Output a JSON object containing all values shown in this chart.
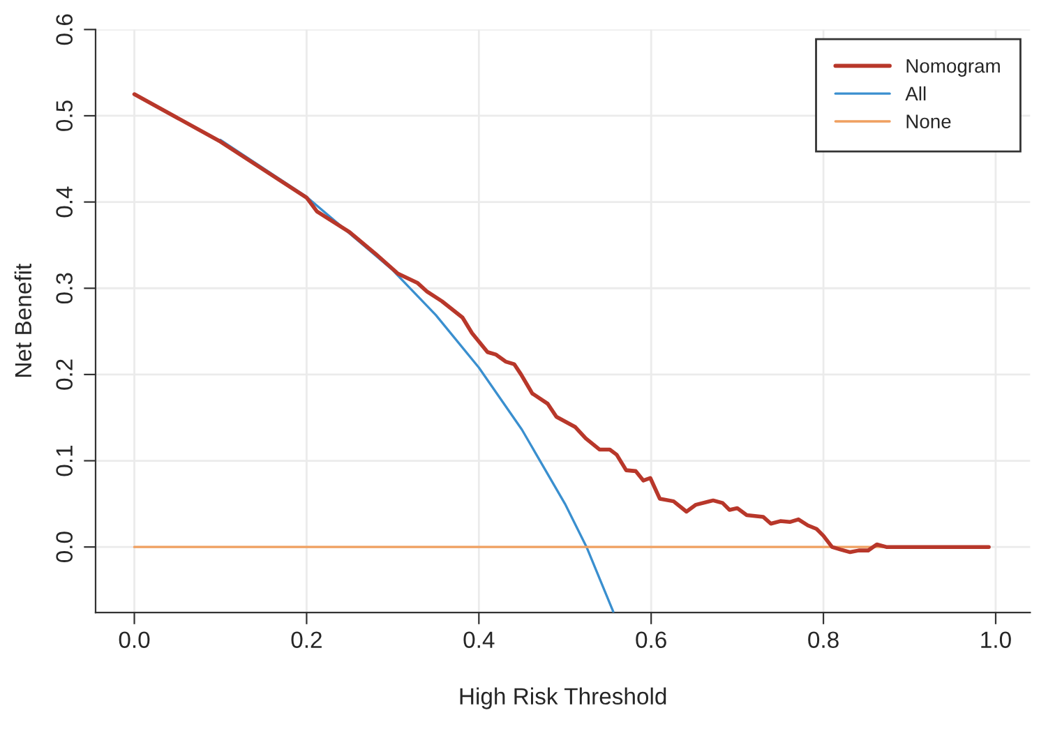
{
  "chart_data": {
    "type": "line",
    "xlabel": "High Risk Threshold",
    "ylabel": "Net Benefit",
    "xlim": [
      -0.045,
      1.04
    ],
    "ylim": [
      -0.076,
      0.6
    ],
    "xticks": [
      {
        "value": 0,
        "label": "0.0"
      },
      0.2,
      0.4,
      0.6,
      0.8,
      {
        "value": 1,
        "label": "1.0"
      }
    ],
    "yticks": [
      {
        "value": 0,
        "label": "0.0"
      },
      0.1,
      0.2,
      0.3,
      0.4,
      0.5,
      0.6
    ],
    "grid": true,
    "legend": "top right",
    "line_style": "solid",
    "marker": "none",
    "series": [
      {
        "name": "Nomogram",
        "color": "#b8372a",
        "x": [
          0,
          0.1,
          0.2,
          0.212,
          0.25,
          0.28,
          0.306,
          0.329,
          0.34,
          0.357,
          0.381,
          0.392,
          0.41,
          0.42,
          0.431,
          0.441,
          0.449,
          0.462,
          0.48,
          0.49,
          0.512,
          0.524,
          0.54,
          0.552,
          0.56,
          0.571,
          0.582,
          0.591,
          0.599,
          0.61,
          0.626,
          0.641,
          0.652,
          0.672,
          0.683,
          0.691,
          0.7,
          0.711,
          0.73,
          0.739,
          0.75,
          0.761,
          0.771,
          0.782,
          0.792,
          0.8,
          0.81,
          0.82,
          0.831,
          0.841,
          0.852,
          0.862,
          0.873,
          0.992
        ],
        "values": [
          0.525,
          0.47,
          0.405,
          0.389,
          0.365,
          0.34,
          0.317,
          0.306,
          0.296,
          0.285,
          0.266,
          0.248,
          0.226,
          0.223,
          0.215,
          0.212,
          0.2,
          0.178,
          0.166,
          0.151,
          0.139,
          0.126,
          0.113,
          0.113,
          0.107,
          0.089,
          0.088,
          0.077,
          0.08,
          0.056,
          0.053,
          0.041,
          0.049,
          0.054,
          0.051,
          0.043,
          0.045,
          0.037,
          0.035,
          0.027,
          0.03,
          0.029,
          0.032,
          0.025,
          0.021,
          0.013,
          0.0,
          -0.003,
          -0.006,
          -0.004,
          -0.004,
          0.003,
          0.0,
          0.0
        ]
      },
      {
        "name": "All",
        "color": "#3a8fcf",
        "x": [
          0.1,
          0.2,
          0.3,
          0.35,
          0.4,
          0.45,
          0.5,
          0.525,
          0.556
        ],
        "values": [
          0.472,
          0.406,
          0.321,
          0.269,
          0.208,
          0.136,
          0.05,
          0.0,
          -0.075
        ]
      },
      {
        "name": "None",
        "color": "#f0a060",
        "x": [
          0,
          0.99
        ],
        "values": [
          0,
          0
        ]
      }
    ]
  }
}
